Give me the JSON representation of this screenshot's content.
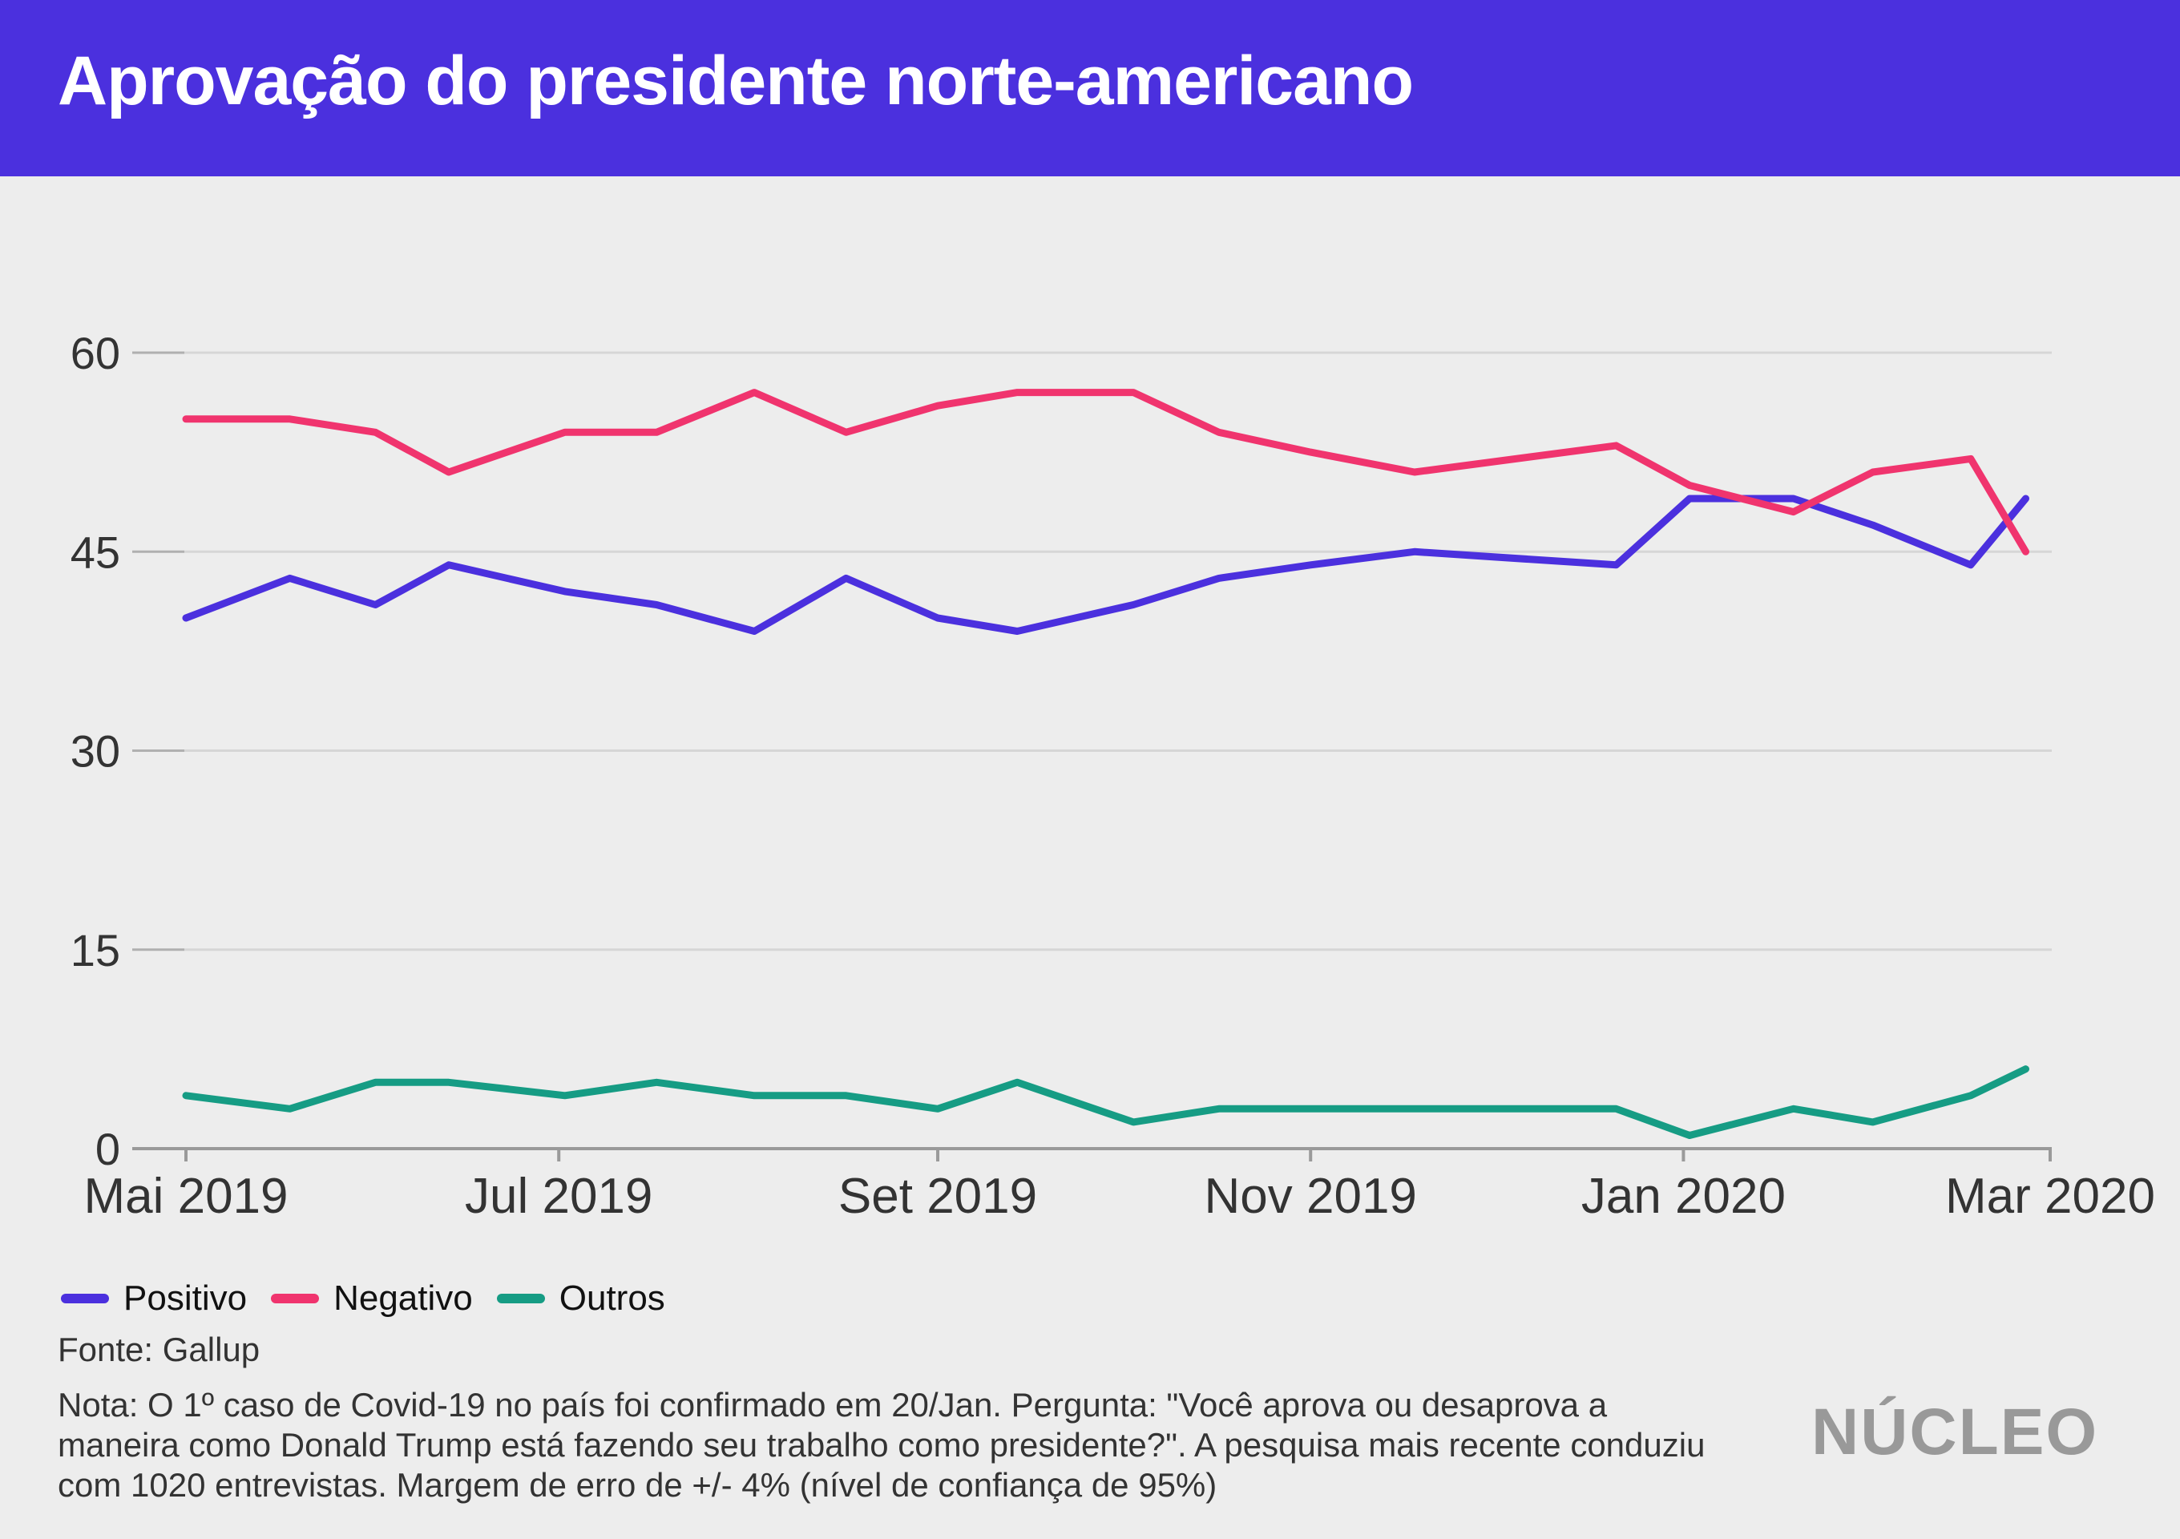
{
  "title": "Aprovação do presidente norte-americano",
  "legend": [
    {
      "label": "Positivo",
      "color": "#4b30de"
    },
    {
      "label": "Negativo",
      "color": "#f0346e"
    },
    {
      "label": "Outros",
      "color": "#169c84"
    }
  ],
  "source": "Fonte: Gallup",
  "note": "Nota: O 1º caso de Covid-19 no país foi confirmado em 20/Jan. Pergunta: \"Você aprova ou desaprova a maneira como Donald Trump está fazendo seu trabalho como presidente?\". A pesquisa mais recente conduziu com 1020 entrevistas. Margem de erro de +/- 4% (nível de confiança de 95%)",
  "logo": "NÚCLEO",
  "chart_data": {
    "type": "line",
    "title": "Aprovação do presidente norte-americano",
    "xlabel": "",
    "ylabel": "",
    "ylim": [
      0,
      60
    ],
    "yticks": [
      0,
      15,
      30,
      45,
      60
    ],
    "x_start": "2019-05-01",
    "x_end": "2020-03-01",
    "x_ticks": [
      {
        "label": "Mai 2019",
        "days": 0
      },
      {
        "label": "Jul 2019",
        "days": 61
      },
      {
        "label": "Set 2019",
        "days": 123
      },
      {
        "label": "Nov 2019",
        "days": 184
      },
      {
        "label": "Jan 2020",
        "days": 245
      },
      {
        "label": "Mar 2020",
        "days": 305
      }
    ],
    "x_days": [
      0,
      17,
      31,
      43,
      62,
      77,
      93,
      108,
      123,
      136,
      155,
      169,
      184,
      201,
      234,
      246,
      263,
      276,
      292,
      301
    ],
    "series": [
      {
        "name": "Positivo",
        "color": "#4b30de",
        "values": [
          40,
          43,
          41,
          44,
          42,
          41,
          39,
          43,
          40,
          39,
          41,
          43,
          44,
          45,
          44,
          49,
          49,
          47,
          44,
          49
        ]
      },
      {
        "name": "Negativo",
        "color": "#f0346e",
        "values": [
          55,
          55,
          54,
          51,
          54,
          54,
          57,
          54,
          56,
          57,
          57,
          54,
          52.5,
          51,
          53,
          50,
          48,
          51,
          52,
          45
        ]
      },
      {
        "name": "Outros",
        "color": "#169c84",
        "values": [
          4,
          3,
          5,
          5,
          4,
          5,
          4,
          4,
          3,
          5,
          2,
          3,
          3,
          3,
          3,
          1,
          3,
          2,
          4,
          6
        ]
      }
    ],
    "grid": true,
    "legend_position": "bottom-left"
  }
}
